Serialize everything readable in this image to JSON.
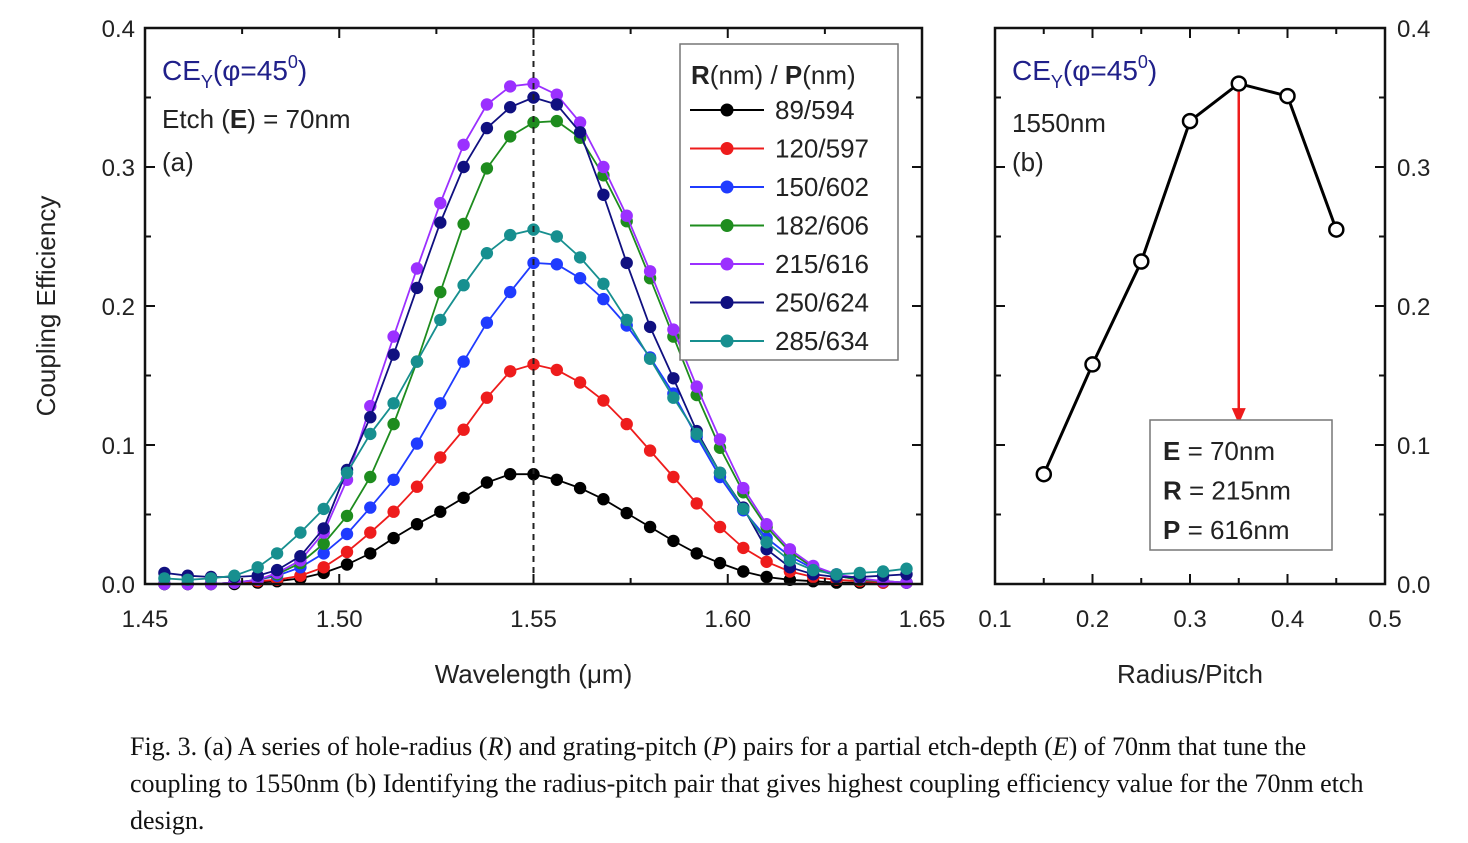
{
  "chart_data": [
    {
      "type": "line",
      "panel_label": "(a)",
      "title_main": "CE",
      "title_sub": "Y",
      "title_paren_open": "(φ=45",
      "title_sup": "0",
      "title_paren_close": ")",
      "etch_pre": "Etch (",
      "etch_bold": "E",
      "etch_post": ") = 70nm",
      "xlabel": "Wavelength (μm)",
      "ylabel": "Coupling Efficiency",
      "xlim": [
        1.45,
        1.65
      ],
      "ylim": [
        0.0,
        0.4
      ],
      "xticks": [
        "1.45",
        "1.50",
        "1.55",
        "1.60",
        "1.65"
      ],
      "yticks": [
        "0.0",
        "0.1",
        "0.2",
        "0.3",
        "0.4"
      ],
      "x_tick_values": [
        1.45,
        1.5,
        1.55,
        1.6,
        1.65
      ],
      "y_tick_values": [
        0.0,
        0.1,
        0.2,
        0.3,
        0.4
      ],
      "vline_x": 1.55,
      "legend_title_bold1": "R",
      "legend_title_mid": "(nm) / ",
      "legend_title_bold2": "P",
      "legend_title_end": "(nm)",
      "legend_position": "top-right",
      "grid": false,
      "series": [
        {
          "name": "89/594",
          "color": "#000000",
          "x": [
            1.455,
            1.461,
            1.467,
            1.473,
            1.479,
            1.484,
            1.49,
            1.496,
            1.502,
            1.508,
            1.514,
            1.52,
            1.526,
            1.532,
            1.538,
            1.544,
            1.55,
            1.556,
            1.562,
            1.568,
            1.574,
            1.58,
            1.586,
            1.592,
            1.598,
            1.604,
            1.61,
            1.616,
            1.622,
            1.628,
            1.634,
            1.64,
            1.646
          ],
          "values": [
            0.0,
            0.0,
            0.0,
            0.0,
            0.001,
            0.002,
            0.004,
            0.008,
            0.014,
            0.022,
            0.033,
            0.043,
            0.052,
            0.062,
            0.073,
            0.079,
            0.079,
            0.075,
            0.069,
            0.061,
            0.051,
            0.041,
            0.031,
            0.022,
            0.015,
            0.009,
            0.005,
            0.003,
            0.002,
            0.001,
            0.001,
            0.001,
            0.001
          ]
        },
        {
          "name": "120/597",
          "color": "#ee1c1c",
          "x": [
            1.455,
            1.461,
            1.467,
            1.473,
            1.479,
            1.484,
            1.49,
            1.496,
            1.502,
            1.508,
            1.514,
            1.52,
            1.526,
            1.532,
            1.538,
            1.544,
            1.55,
            1.556,
            1.562,
            1.568,
            1.574,
            1.58,
            1.586,
            1.592,
            1.598,
            1.604,
            1.61,
            1.616,
            1.622,
            1.628,
            1.634,
            1.64,
            1.646
          ],
          "values": [
            0.0,
            0.0,
            0.0,
            0.001,
            0.002,
            0.003,
            0.006,
            0.012,
            0.023,
            0.037,
            0.052,
            0.07,
            0.091,
            0.111,
            0.134,
            0.153,
            0.158,
            0.154,
            0.145,
            0.132,
            0.115,
            0.096,
            0.077,
            0.058,
            0.041,
            0.026,
            0.016,
            0.009,
            0.005,
            0.003,
            0.002,
            0.001,
            0.001
          ]
        },
        {
          "name": "150/602",
          "color": "#1f3bff",
          "x": [
            1.455,
            1.461,
            1.467,
            1.473,
            1.479,
            1.484,
            1.49,
            1.496,
            1.502,
            1.508,
            1.514,
            1.52,
            1.526,
            1.532,
            1.538,
            1.544,
            1.55,
            1.556,
            1.562,
            1.568,
            1.574,
            1.58,
            1.586,
            1.592,
            1.598,
            1.604,
            1.61,
            1.616,
            1.622,
            1.628,
            1.634,
            1.64,
            1.646
          ],
          "values": [
            0.0,
            0.0,
            0.0,
            0.001,
            0.003,
            0.006,
            0.012,
            0.022,
            0.036,
            0.055,
            0.075,
            0.101,
            0.13,
            0.16,
            0.188,
            0.21,
            0.231,
            0.23,
            0.22,
            0.205,
            0.186,
            0.163,
            0.137,
            0.106,
            0.077,
            0.053,
            0.033,
            0.02,
            0.011,
            0.006,
            0.003,
            0.002,
            0.001
          ]
        },
        {
          "name": "182/606",
          "color": "#1e8c1e",
          "x": [
            1.455,
            1.461,
            1.467,
            1.473,
            1.479,
            1.484,
            1.49,
            1.496,
            1.502,
            1.508,
            1.514,
            1.52,
            1.526,
            1.532,
            1.538,
            1.544,
            1.55,
            1.556,
            1.562,
            1.568,
            1.574,
            1.58,
            1.586,
            1.592,
            1.598,
            1.604,
            1.61,
            1.616,
            1.622,
            1.628,
            1.634,
            1.64,
            1.646
          ],
          "values": [
            0.0,
            0.0,
            0.0,
            0.001,
            0.003,
            0.007,
            0.015,
            0.029,
            0.049,
            0.077,
            0.115,
            0.16,
            0.21,
            0.259,
            0.299,
            0.322,
            0.332,
            0.333,
            0.321,
            0.294,
            0.261,
            0.22,
            0.178,
            0.136,
            0.098,
            0.066,
            0.041,
            0.023,
            0.012,
            0.006,
            0.003,
            0.002,
            0.001
          ]
        },
        {
          "name": "215/616",
          "color": "#9b30ff",
          "x": [
            1.455,
            1.461,
            1.467,
            1.473,
            1.479,
            1.484,
            1.49,
            1.496,
            1.502,
            1.508,
            1.514,
            1.52,
            1.526,
            1.532,
            1.538,
            1.544,
            1.55,
            1.556,
            1.562,
            1.568,
            1.574,
            1.58,
            1.586,
            1.592,
            1.598,
            1.604,
            1.61,
            1.616,
            1.622,
            1.628,
            1.634,
            1.64,
            1.646
          ],
          "values": [
            0.0,
            0.0,
            0.0,
            0.001,
            0.003,
            0.008,
            0.017,
            0.037,
            0.075,
            0.128,
            0.178,
            0.227,
            0.274,
            0.316,
            0.345,
            0.358,
            0.36,
            0.352,
            0.332,
            0.3,
            0.265,
            0.225,
            0.183,
            0.142,
            0.104,
            0.069,
            0.043,
            0.025,
            0.013,
            0.007,
            0.004,
            0.002,
            0.001
          ]
        },
        {
          "name": "250/624",
          "color": "#101080",
          "x": [
            1.455,
            1.461,
            1.467,
            1.473,
            1.479,
            1.484,
            1.49,
            1.496,
            1.502,
            1.508,
            1.514,
            1.52,
            1.526,
            1.532,
            1.538,
            1.544,
            1.55,
            1.556,
            1.562,
            1.568,
            1.574,
            1.58,
            1.586,
            1.592,
            1.598,
            1.604,
            1.61,
            1.616,
            1.622,
            1.628,
            1.634,
            1.64,
            1.646
          ],
          "values": [
            0.008,
            0.006,
            0.005,
            0.005,
            0.006,
            0.01,
            0.02,
            0.04,
            0.082,
            0.12,
            0.165,
            0.213,
            0.26,
            0.3,
            0.328,
            0.343,
            0.35,
            0.345,
            0.325,
            0.28,
            0.231,
            0.185,
            0.148,
            0.11,
            0.08,
            0.055,
            0.025,
            0.012,
            0.007,
            0.005,
            0.005,
            0.006,
            0.007
          ]
        },
        {
          "name": "285/634",
          "color": "#178f8f",
          "x": [
            1.455,
            1.461,
            1.467,
            1.473,
            1.479,
            1.484,
            1.49,
            1.496,
            1.502,
            1.508,
            1.514,
            1.52,
            1.526,
            1.532,
            1.538,
            1.544,
            1.55,
            1.556,
            1.562,
            1.568,
            1.574,
            1.58,
            1.586,
            1.592,
            1.598,
            1.604,
            1.61,
            1.616,
            1.622,
            1.628,
            1.634,
            1.64,
            1.646
          ],
          "values": [
            0.004,
            0.003,
            0.004,
            0.006,
            0.012,
            0.022,
            0.037,
            0.054,
            0.08,
            0.108,
            0.13,
            0.16,
            0.19,
            0.215,
            0.238,
            0.251,
            0.255,
            0.25,
            0.235,
            0.216,
            0.19,
            0.162,
            0.134,
            0.108,
            0.08,
            0.054,
            0.03,
            0.017,
            0.01,
            0.007,
            0.008,
            0.009,
            0.011
          ]
        }
      ]
    },
    {
      "type": "line",
      "panel_label": "(b)",
      "title_main": "CE",
      "title_sub": "Y",
      "title_paren_open": "(φ=45",
      "title_sup": "0",
      "title_paren_close": ")",
      "wavelength_label": "1550nm",
      "xlabel": "Radius/Pitch",
      "xlim": [
        0.1,
        0.5
      ],
      "ylim": [
        0.0,
        0.4
      ],
      "xticks": [
        "0.1",
        "0.2",
        "0.3",
        "0.4",
        "0.5"
      ],
      "yticks": [
        "0.0",
        "0.1",
        "0.2",
        "0.3",
        "0.4"
      ],
      "x_tick_values": [
        0.1,
        0.2,
        0.3,
        0.4,
        0.5
      ],
      "y_tick_values": [
        0.0,
        0.1,
        0.2,
        0.3,
        0.4
      ],
      "y_axis_side": "right",
      "grid": false,
      "marker": "open-circle",
      "line_color": "#000000",
      "arrow_color": "#ee1c1c",
      "arrow_from_x": 0.35,
      "arrow_from_y": 0.36,
      "arrow_to_y": 0.115,
      "series": [
        {
          "x": [
            0.15,
            0.2,
            0.25,
            0.3,
            0.35,
            0.4,
            0.45
          ],
          "values": [
            0.079,
            0.158,
            0.232,
            0.333,
            0.36,
            0.351,
            0.255
          ]
        }
      ],
      "annotation": [
        {
          "key": "E",
          "value": " = 70nm"
        },
        {
          "key": "R",
          "value": " = 215nm"
        },
        {
          "key": "P",
          "value": " = 616nm"
        }
      ]
    }
  ],
  "caption": {
    "c1": "Fig. 3. (a) A series of hole-radius (",
    "c2": "R",
    "c3": ") and grating-pitch (",
    "c4": "P",
    "c5": ") pairs for a partial etch-depth (",
    "c6": "E",
    "c7": ") of 70nm that tune the coupling to 1550nm (b) Identifying the radius-pitch pair that gives highest coupling efficiency value for the 70nm etch design."
  }
}
